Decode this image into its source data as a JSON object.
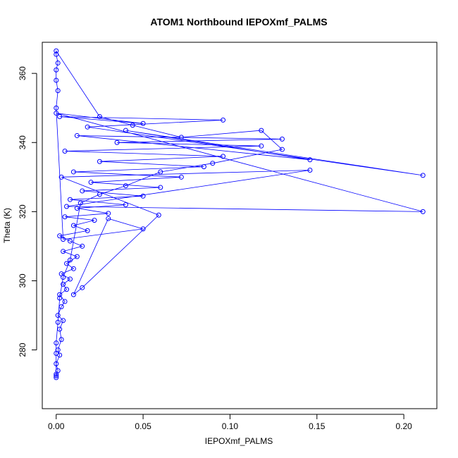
{
  "chart_data": {
    "type": "scatter",
    "title": "ATOM1 Northbound IEPOXmf_PALMS",
    "xlabel": "IEPOXmf_PALMS",
    "ylabel": "Theta (K)",
    "xlim": [
      -0.008,
      0.219
    ],
    "ylim": [
      263,
      369
    ],
    "x_ticks": [
      0.0,
      0.05,
      0.1,
      0.15,
      0.2
    ],
    "x_tick_labels": [
      "0.00",
      "0.05",
      "0.10",
      "0.15",
      "0.20"
    ],
    "y_ticks": [
      280,
      300,
      320,
      340,
      360
    ],
    "y_tick_labels": [
      "280",
      "300",
      "320",
      "340",
      "360"
    ],
    "grid": false,
    "series": [
      {
        "color": "#0000ff",
        "marker": "open-circle",
        "connected": true,
        "points": [
          [
            0.0,
            272.5
          ],
          [
            0.001,
            274.0
          ],
          [
            0.0,
            276.0
          ],
          [
            0.002,
            278.5
          ],
          [
            0.001,
            280.0
          ],
          [
            0.003,
            283.0
          ],
          [
            0.002,
            286.0
          ],
          [
            0.004,
            288.5
          ],
          [
            0.001,
            290.0
          ],
          [
            0.003,
            292.5
          ],
          [
            0.005,
            294.0
          ],
          [
            0.002,
            296.0
          ],
          [
            0.006,
            297.5
          ],
          [
            0.004,
            299.0
          ],
          [
            0.008,
            300.5
          ],
          [
            0.003,
            302.0
          ],
          [
            0.01,
            303.5
          ],
          [
            0.006,
            305.0
          ],
          [
            0.012,
            307.0
          ],
          [
            0.004,
            308.5
          ],
          [
            0.015,
            310.0
          ],
          [
            0.008,
            311.5
          ],
          [
            0.002,
            313.0
          ],
          [
            0.018,
            314.5
          ],
          [
            0.01,
            316.0
          ],
          [
            0.022,
            317.5
          ],
          [
            0.005,
            318.5
          ],
          [
            0.03,
            319.5
          ],
          [
            0.012,
            321.0
          ],
          [
            0.04,
            322.0
          ],
          [
            0.008,
            323.5
          ],
          [
            0.05,
            324.5
          ],
          [
            0.015,
            326.0
          ],
          [
            0.06,
            327.0
          ],
          [
            0.02,
            328.5
          ],
          [
            0.072,
            330.0
          ],
          [
            0.01,
            331.5
          ],
          [
            0.085,
            333.0
          ],
          [
            0.025,
            334.5
          ],
          [
            0.096,
            336.0
          ],
          [
            0.005,
            337.5
          ],
          [
            0.118,
            339.0
          ],
          [
            0.035,
            340.0
          ],
          [
            0.13,
            341.0
          ],
          [
            0.012,
            342.0
          ],
          [
            0.146,
            335.0
          ],
          [
            0.04,
            343.5
          ],
          [
            0.211,
            330.5
          ],
          [
            0.018,
            344.5
          ],
          [
            0.096,
            346.5
          ],
          [
            0.002,
            347.5
          ],
          [
            0.05,
            345.5
          ],
          [
            0.0,
            348.5
          ],
          [
            0.211,
            320.0
          ],
          [
            0.006,
            321.5
          ],
          [
            0.146,
            332.0
          ],
          [
            0.003,
            330.0
          ],
          [
            0.059,
            319.0
          ],
          [
            0.015,
            298.0
          ],
          [
            0.01,
            296.0
          ],
          [
            0.03,
            318.0
          ],
          [
            0.05,
            315.0
          ],
          [
            0.004,
            312.0
          ],
          [
            0.0,
            350.0
          ],
          [
            0.001,
            355.0
          ],
          [
            0.0,
            358.0
          ],
          [
            0.0,
            361.0
          ],
          [
            0.001,
            363.0
          ],
          [
            0.0,
            365.5
          ],
          [
            0.0,
            366.5
          ],
          [
            0.025,
            347.5
          ],
          [
            0.044,
            345.0
          ],
          [
            0.072,
            341.5
          ],
          [
            0.118,
            343.5
          ],
          [
            0.13,
            338.0
          ],
          [
            0.09,
            334.0
          ],
          [
            0.06,
            331.5
          ],
          [
            0.04,
            327.5
          ],
          [
            0.025,
            325.0
          ],
          [
            0.014,
            322.5
          ],
          [
            0.008,
            306.0
          ],
          [
            0.004,
            301.0
          ],
          [
            0.002,
            295.0
          ],
          [
            0.001,
            288.0
          ],
          [
            0.0,
            282.0
          ],
          [
            0.0,
            279.0
          ],
          [
            0.0,
            273.0
          ],
          [
            0.0,
            272.0
          ]
        ]
      }
    ]
  }
}
